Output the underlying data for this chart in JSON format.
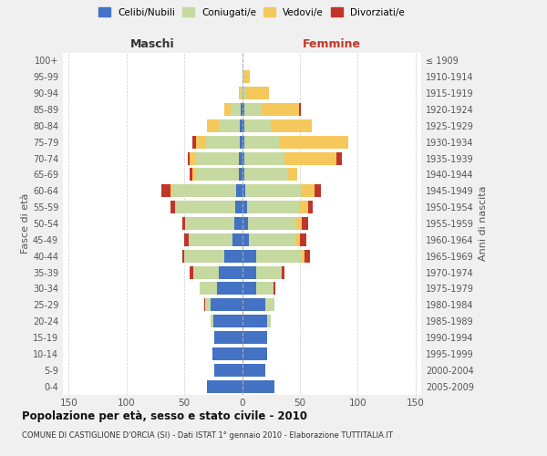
{
  "age_groups": [
    "0-4",
    "5-9",
    "10-14",
    "15-19",
    "20-24",
    "25-29",
    "30-34",
    "35-39",
    "40-44",
    "45-49",
    "50-54",
    "55-59",
    "60-64",
    "65-69",
    "70-74",
    "75-79",
    "80-84",
    "85-89",
    "90-94",
    "95-99",
    "100+"
  ],
  "birth_years": [
    "2005-2009",
    "2000-2004",
    "1995-1999",
    "1990-1994",
    "1985-1989",
    "1980-1984",
    "1975-1979",
    "1970-1974",
    "1965-1969",
    "1960-1964",
    "1955-1959",
    "1950-1954",
    "1945-1949",
    "1940-1944",
    "1935-1939",
    "1930-1934",
    "1925-1929",
    "1920-1924",
    "1915-1919",
    "1910-1914",
    "≤ 1909"
  ],
  "colors": {
    "celibi": "#4472C4",
    "coniugati": "#C5D9A0",
    "vedovi": "#F5C85C",
    "divorziati": "#C0352A"
  },
  "maschi": {
    "celibi": [
      30,
      24,
      26,
      24,
      25,
      27,
      22,
      20,
      15,
      8,
      7,
      6,
      5,
      3,
      3,
      2,
      2,
      1,
      0,
      0,
      0
    ],
    "coniugati": [
      0,
      0,
      0,
      0,
      2,
      5,
      15,
      22,
      35,
      38,
      42,
      52,
      55,
      38,
      38,
      30,
      18,
      9,
      1,
      0,
      0
    ],
    "vedovi": [
      0,
      0,
      0,
      0,
      0,
      0,
      0,
      0,
      0,
      0,
      0,
      0,
      2,
      2,
      4,
      8,
      10,
      5,
      2,
      0,
      0
    ],
    "divorziati": [
      0,
      0,
      0,
      0,
      0,
      1,
      0,
      3,
      2,
      4,
      3,
      4,
      8,
      2,
      2,
      3,
      0,
      0,
      0,
      0,
      0
    ]
  },
  "femmine": {
    "nubili": [
      28,
      20,
      22,
      22,
      22,
      20,
      12,
      12,
      12,
      6,
      5,
      4,
      3,
      2,
      2,
      2,
      2,
      2,
      0,
      0,
      0
    ],
    "coniugate": [
      0,
      0,
      0,
      0,
      3,
      8,
      15,
      22,
      40,
      40,
      42,
      45,
      48,
      38,
      35,
      30,
      23,
      15,
      3,
      2,
      0
    ],
    "vedove": [
      0,
      0,
      0,
      0,
      0,
      0,
      0,
      0,
      2,
      4,
      5,
      8,
      12,
      8,
      45,
      60,
      35,
      32,
      20,
      5,
      0
    ],
    "divorziate": [
      0,
      0,
      0,
      0,
      0,
      0,
      2,
      3,
      5,
      6,
      5,
      4,
      5,
      0,
      4,
      0,
      0,
      2,
      0,
      0,
      0
    ]
  },
  "xlim": 155,
  "title": "Popolazione per età, sesso e stato civile - 2010",
  "subtitle": "COMUNE DI CASTIGLIONE D'ORCIA (SI) - Dati ISTAT 1° gennaio 2010 - Elaborazione TUTTITALIA.IT",
  "xlabel_left": "Maschi",
  "xlabel_right": "Femmine",
  "ylabel_left": "Fasce di età",
  "ylabel_right": "Anni di nascita",
  "bg_color": "#f0f0f0",
  "plot_bg": "#ffffff"
}
